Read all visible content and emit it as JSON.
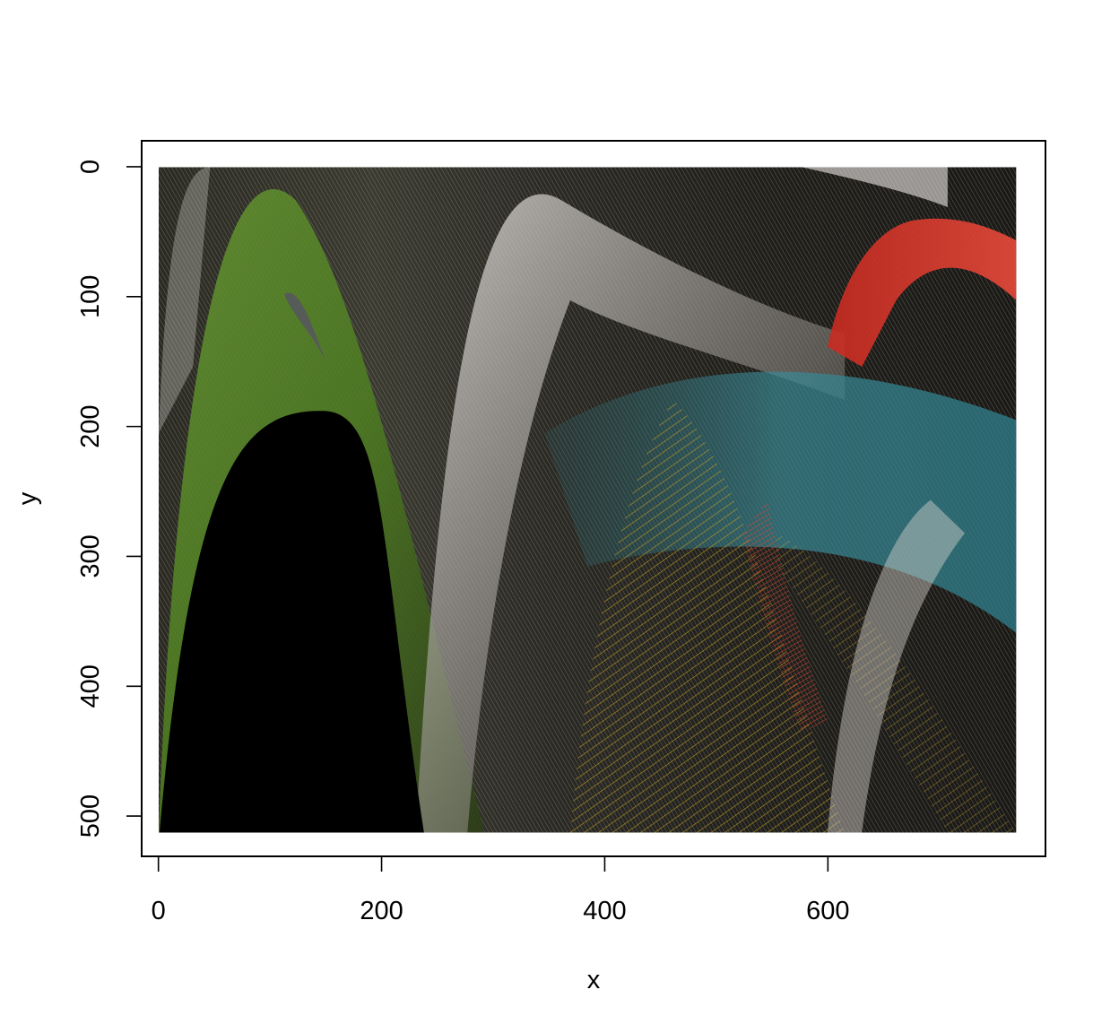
{
  "chart_data": {
    "type": "image",
    "title": "",
    "xlabel": "x",
    "ylabel": "y",
    "xlim": [
      -15,
      795
    ],
    "ylim": [
      531,
      -20
    ],
    "x_ticks": [
      0,
      200,
      400,
      600
    ],
    "y_ticks": [
      0,
      100,
      200,
      300,
      400,
      500
    ],
    "x_tick_labels": [
      "0",
      "200",
      "400",
      "600"
    ],
    "y_tick_labels": [
      "0",
      "100",
      "200",
      "300",
      "400",
      "500"
    ],
    "y_axis_reversed": true,
    "grid": false,
    "image_extent": {
      "x": [
        1,
        768
      ],
      "y": [
        1,
        512
      ]
    },
    "image_description_colors": {
      "background": "#1c1a15",
      "green": "#5a8a2a",
      "silver": "#c8c4c0",
      "red": "#d8352a",
      "teal": "#2f7f8a",
      "gold": "#c9a020"
    },
    "dark_region": {
      "description": "solid black parabolic region lower-left",
      "peak": [
        148,
        188
      ],
      "base_x": [
        1,
        238
      ]
    }
  }
}
